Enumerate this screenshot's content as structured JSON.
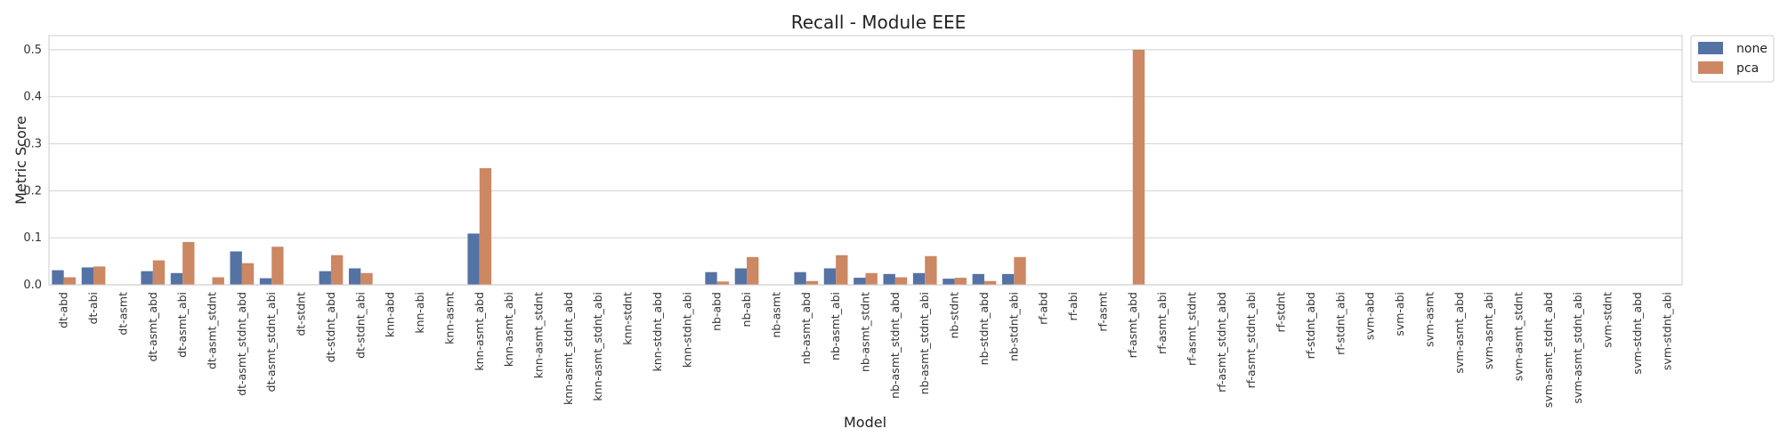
{
  "chart_data": {
    "type": "bar",
    "title": "Recall - Module EEE",
    "xlabel": "Model",
    "ylabel": "Metric Score",
    "ylim": [
      0,
      0.53
    ],
    "yticks": [
      "0.0",
      "0.1",
      "0.2",
      "0.3",
      "0.4",
      "0.5"
    ],
    "grid": "horizontal",
    "legend_position": "outside-top-right",
    "categories": [
      "dt-abd",
      "dt-abi",
      "dt-asmt",
      "dt-asmt_abd",
      "dt-asmt_abi",
      "dt-asmt_stdnt",
      "dt-asmt_stdnt_abd",
      "dt-asmt_stdnt_abi",
      "dt-stdnt",
      "dt-stdnt_abd",
      "dt-stdnt_abi",
      "knn-abd",
      "knn-abi",
      "knn-asmt",
      "knn-asmt_abd",
      "knn-asmt_abi",
      "knn-asmt_stdnt",
      "knn-asmt_stdnt_abd",
      "knn-asmt_stdnt_abi",
      "knn-stdnt",
      "knn-stdnt_abd",
      "knn-stdnt_abi",
      "nb-abd",
      "nb-abi",
      "nb-asmt",
      "nb-asmt_abd",
      "nb-asmt_abi",
      "nb-asmt_stdnt",
      "nb-asmt_stdnt_abd",
      "nb-asmt_stdnt_abi",
      "nb-stdnt",
      "nb-stdnt_abd",
      "nb-stdnt_abi",
      "rf-abd",
      "rf-abi",
      "rf-asmt",
      "rf-asmt_abd",
      "rf-asmt_abi",
      "rf-asmt_stdnt",
      "rf-asmt_stdnt_abd",
      "rf-asmt_stdnt_abi",
      "rf-stdnt",
      "rf-stdnt_abd",
      "rf-stdnt_abi",
      "svm-abd",
      "svm-abi",
      "svm-asmt",
      "svm-asmt_abd",
      "svm-asmt_abi",
      "svm-asmt_stdnt",
      "svm-asmt_stdnt_abd",
      "svm-asmt_stdnt_abi",
      "svm-stdnt",
      "svm-stdnt_abd",
      "svm-stdnt_abi"
    ],
    "series": [
      {
        "name": "none",
        "color": "#5572a4",
        "values": [
          0.031,
          0.037,
          0.0,
          0.029,
          0.025,
          0.0,
          0.071,
          0.014,
          0.0,
          0.029,
          0.035,
          0.0,
          0.0,
          0.0,
          0.109,
          0.0,
          0.0,
          0.0,
          0.0,
          0.0,
          0.0,
          0.0,
          0.027,
          0.035,
          0.0,
          0.027,
          0.035,
          0.015,
          0.023,
          0.025,
          0.013,
          0.023,
          0.023,
          0.0,
          0.0,
          0.0,
          0.0,
          0.0,
          0.0,
          0.0,
          0.0,
          0.0,
          0.0,
          0.0,
          0.0,
          0.0,
          0.0,
          0.0,
          0.0,
          0.0,
          0.0,
          0.0,
          0.0,
          0.0,
          0.0
        ]
      },
      {
        "name": "pca",
        "color": "#cc8763",
        "values": [
          0.016,
          0.039,
          0.0,
          0.052,
          0.091,
          0.016,
          0.046,
          0.081,
          0.0,
          0.063,
          0.025,
          0.0,
          0.0,
          0.0,
          0.248,
          0.0,
          0.0,
          0.0,
          0.0,
          0.0,
          0.0,
          0.0,
          0.007,
          0.059,
          0.0,
          0.008,
          0.063,
          0.025,
          0.016,
          0.061,
          0.015,
          0.008,
          0.059,
          0.0,
          0.0,
          0.0,
          0.5,
          0.0,
          0.0,
          0.0,
          0.0,
          0.0,
          0.0,
          0.0,
          0.0,
          0.0,
          0.0,
          0.0,
          0.0,
          0.0,
          0.0,
          0.0,
          0.0,
          0.0,
          0.0
        ]
      }
    ]
  }
}
